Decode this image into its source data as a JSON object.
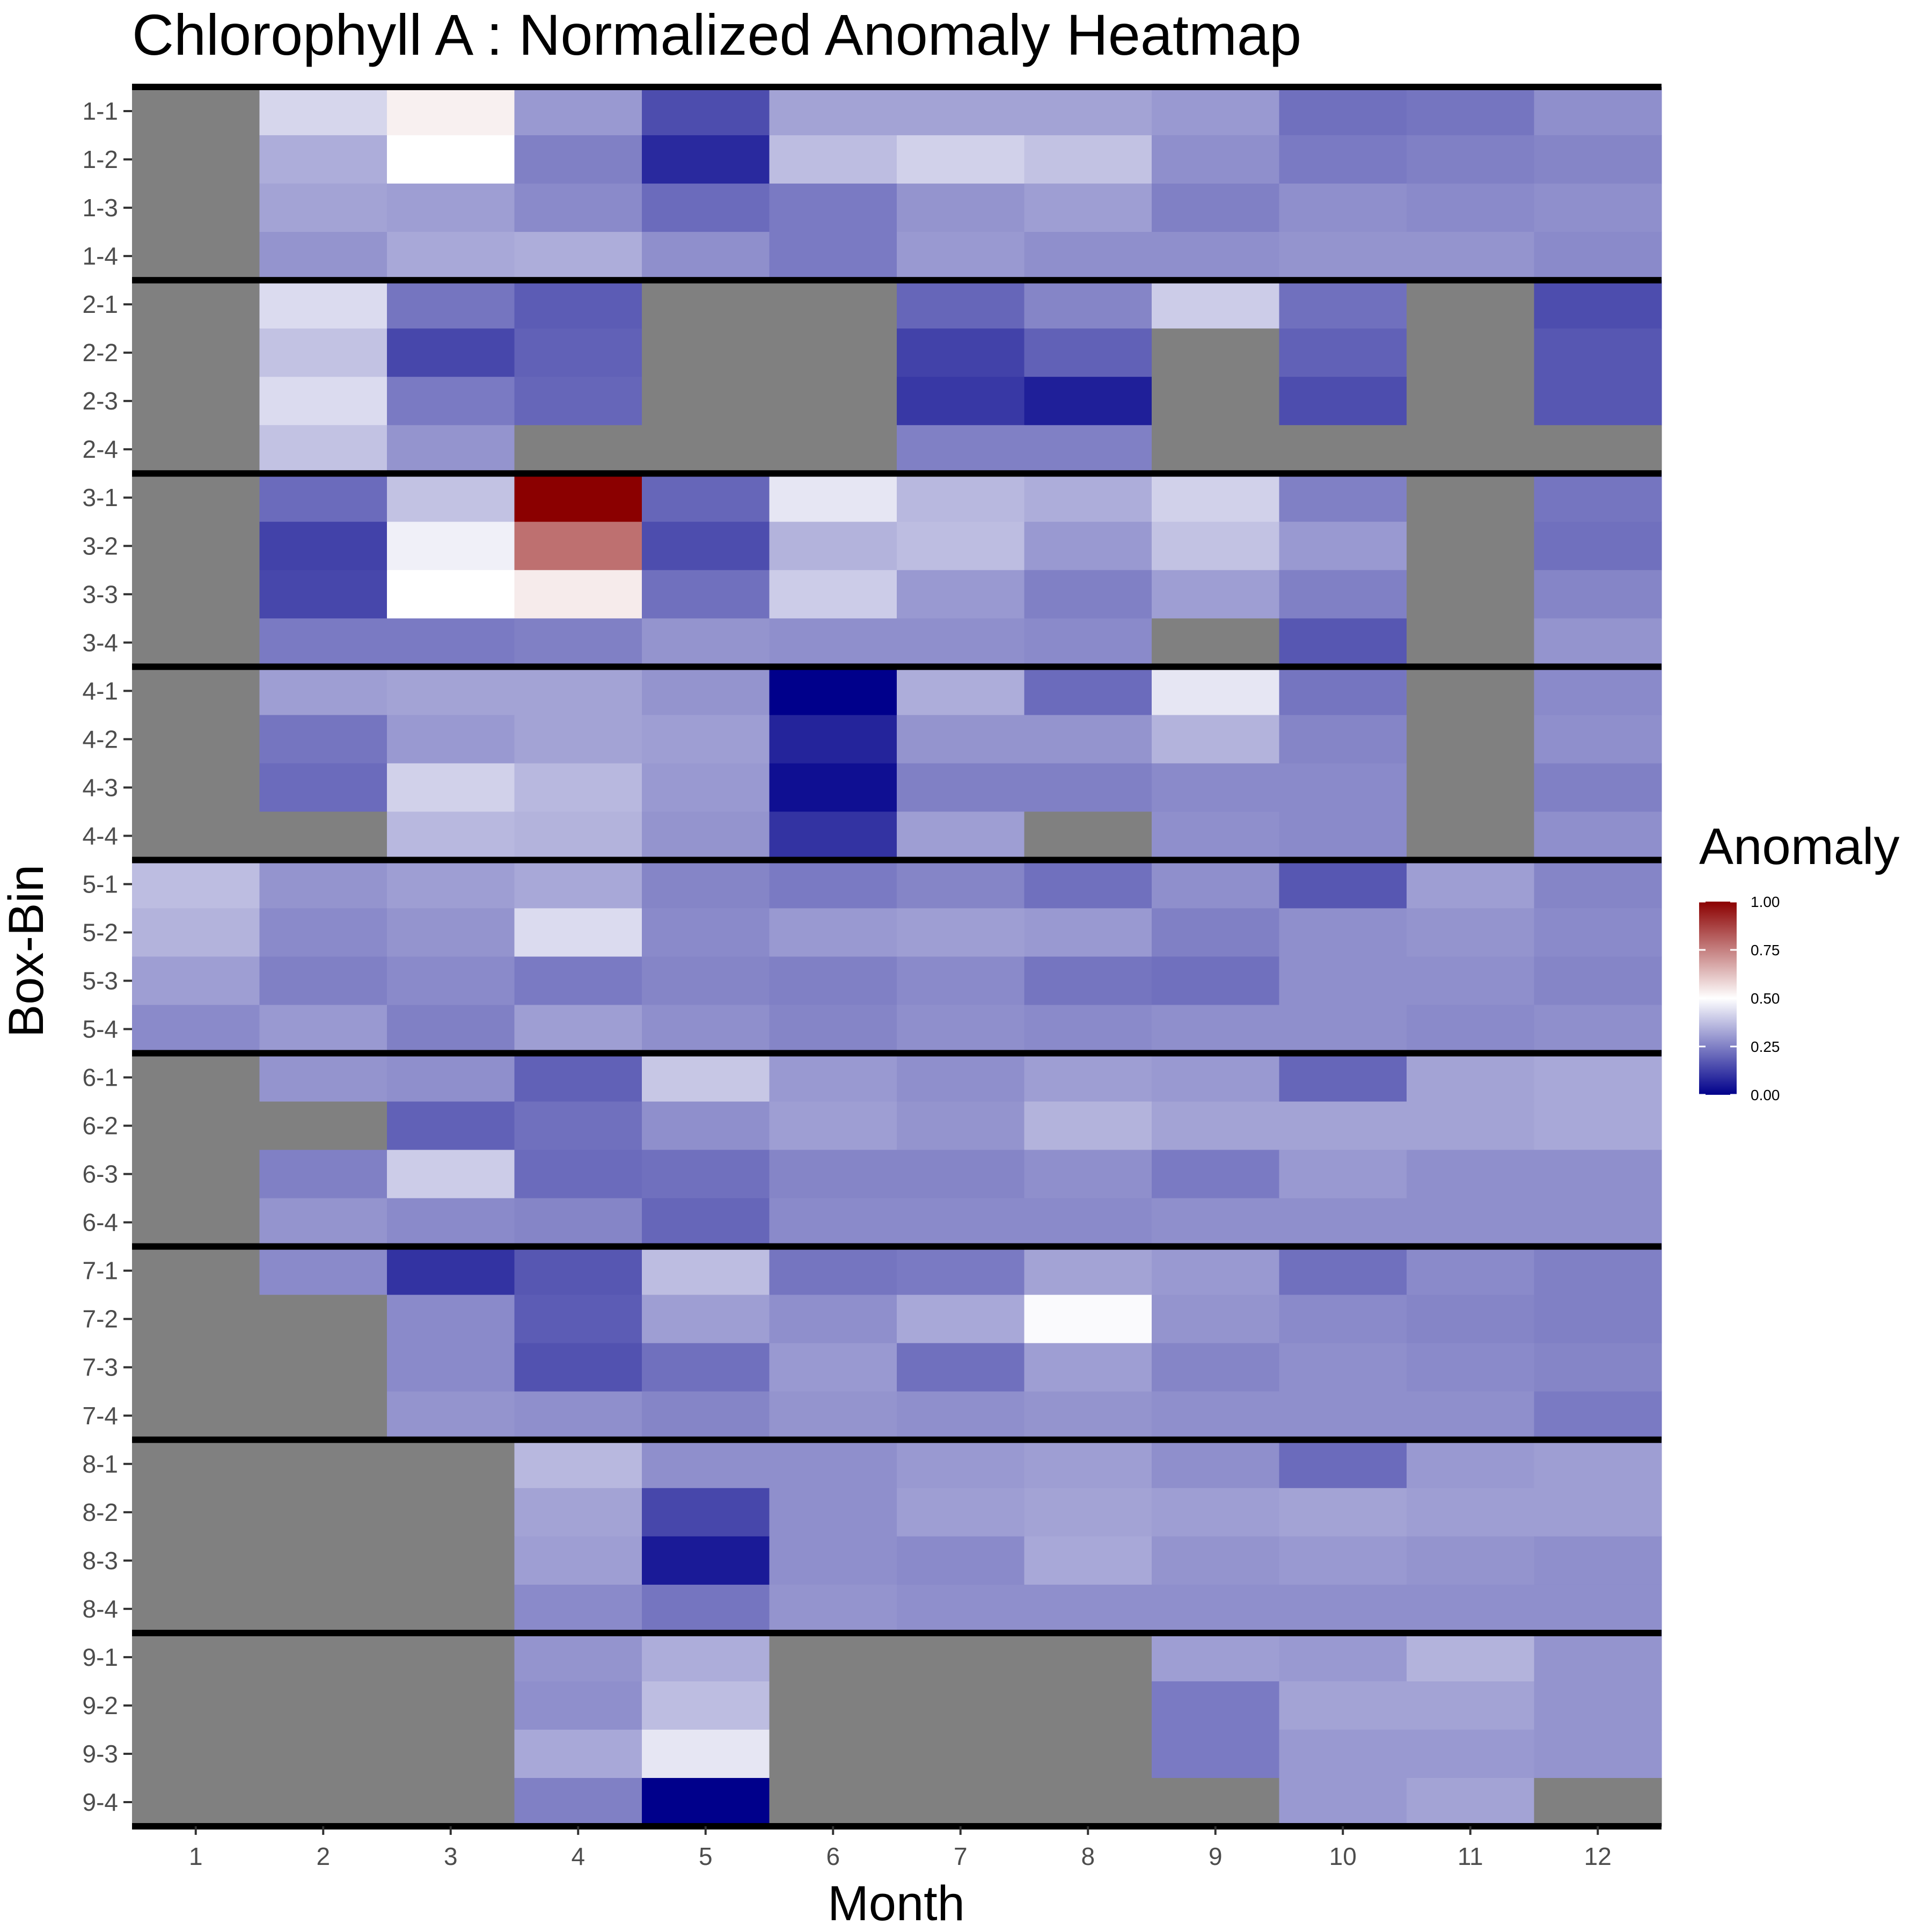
{
  "chart_data": {
    "type": "heatmap",
    "title": "Chlorophyll A : Normalized Anomaly Heatmap",
    "xlabel": "Month",
    "ylabel": "Box-Bin",
    "x_categories": [
      "1",
      "2",
      "3",
      "4",
      "5",
      "6",
      "7",
      "8",
      "9",
      "10",
      "11",
      "12"
    ],
    "y_categories": [
      "1-1",
      "1-2",
      "1-3",
      "1-4",
      "2-1",
      "2-2",
      "2-3",
      "2-4",
      "3-1",
      "3-2",
      "3-3",
      "3-4",
      "4-1",
      "4-2",
      "4-3",
      "4-4",
      "5-1",
      "5-2",
      "5-3",
      "5-4",
      "6-1",
      "6-2",
      "6-3",
      "6-4",
      "7-1",
      "7-2",
      "7-3",
      "7-4",
      "8-1",
      "8-2",
      "8-3",
      "8-4",
      "9-1",
      "9-2",
      "9-3",
      "9-4"
    ],
    "values": [
      [
        null,
        0.42,
        0.53,
        0.3,
        0.15,
        0.32,
        0.32,
        0.32,
        0.3,
        0.22,
        0.23,
        0.28
      ],
      [
        null,
        0.34,
        0.5,
        0.25,
        0.08,
        0.37,
        0.41,
        0.38,
        0.28,
        0.24,
        0.25,
        0.26
      ],
      [
        null,
        0.32,
        0.31,
        0.27,
        0.21,
        0.24,
        0.29,
        0.31,
        0.25,
        0.28,
        0.27,
        0.28
      ],
      [
        null,
        0.29,
        0.33,
        0.34,
        0.28,
        0.24,
        0.3,
        0.28,
        0.28,
        0.29,
        0.29,
        0.27
      ],
      [
        null,
        0.43,
        0.23,
        0.18,
        null,
        null,
        0.2,
        0.26,
        0.4,
        0.22,
        null,
        0.15
      ],
      [
        null,
        0.38,
        0.14,
        0.19,
        null,
        null,
        0.13,
        0.19,
        null,
        0.19,
        null,
        0.17
      ],
      [
        null,
        0.43,
        0.24,
        0.2,
        null,
        null,
        0.11,
        0.06,
        null,
        0.15,
        null,
        0.17
      ],
      [
        null,
        0.38,
        0.29,
        null,
        null,
        null,
        0.25,
        0.25,
        null,
        null,
        null,
        null
      ],
      [
        null,
        0.21,
        0.38,
        1.0,
        0.2,
        0.45,
        0.36,
        0.34,
        0.41,
        0.25,
        null,
        0.23
      ],
      [
        null,
        0.13,
        0.47,
        0.78,
        0.15,
        0.35,
        0.37,
        0.3,
        0.38,
        0.3,
        null,
        0.22
      ],
      [
        null,
        0.14,
        0.5,
        0.54,
        0.22,
        0.4,
        0.3,
        0.25,
        0.31,
        0.25,
        null,
        0.26
      ],
      [
        null,
        0.24,
        0.24,
        0.25,
        0.29,
        0.28,
        0.28,
        0.27,
        null,
        0.17,
        null,
        0.29
      ],
      [
        null,
        0.31,
        0.32,
        0.32,
        0.29,
        0.0,
        0.34,
        0.21,
        0.45,
        0.23,
        null,
        0.27
      ],
      [
        null,
        0.23,
        0.3,
        0.32,
        0.31,
        0.07,
        0.29,
        0.29,
        0.35,
        0.26,
        null,
        0.28
      ],
      [
        null,
        0.21,
        0.41,
        0.36,
        0.3,
        0.03,
        0.25,
        0.25,
        0.27,
        0.27,
        null,
        0.25
      ],
      [
        null,
        null,
        0.36,
        0.35,
        0.29,
        0.1,
        0.31,
        null,
        0.28,
        0.27,
        null,
        0.28
      ],
      [
        0.37,
        0.29,
        0.31,
        0.33,
        0.26,
        0.24,
        0.26,
        0.22,
        0.28,
        0.17,
        0.31,
        0.26
      ],
      [
        0.35,
        0.27,
        0.29,
        0.43,
        0.27,
        0.3,
        0.31,
        0.3,
        0.25,
        0.28,
        0.29,
        0.27
      ],
      [
        0.31,
        0.25,
        0.27,
        0.24,
        0.26,
        0.25,
        0.27,
        0.23,
        0.22,
        0.28,
        0.28,
        0.26
      ],
      [
        0.27,
        0.3,
        0.25,
        0.31,
        0.28,
        0.26,
        0.28,
        0.27,
        0.28,
        0.28,
        0.27,
        0.28
      ],
      [
        null,
        0.29,
        0.28,
        0.19,
        0.39,
        0.3,
        0.28,
        0.31,
        0.3,
        0.2,
        0.32,
        0.33
      ],
      [
        null,
        null,
        0.19,
        0.22,
        0.28,
        0.31,
        0.29,
        0.35,
        0.32,
        0.32,
        0.32,
        0.33
      ],
      [
        null,
        0.25,
        0.4,
        0.21,
        0.22,
        0.26,
        0.26,
        0.28,
        0.24,
        0.3,
        0.28,
        0.28
      ],
      [
        null,
        0.29,
        0.27,
        0.26,
        0.2,
        0.27,
        0.27,
        0.27,
        0.28,
        0.28,
        0.28,
        0.28
      ],
      [
        null,
        0.27,
        0.1,
        0.17,
        0.37,
        0.23,
        0.24,
        0.32,
        0.3,
        0.22,
        0.27,
        0.25
      ],
      [
        null,
        null,
        0.27,
        0.18,
        0.31,
        0.28,
        0.33,
        0.49,
        0.29,
        0.27,
        0.26,
        0.25
      ],
      [
        null,
        null,
        0.27,
        0.16,
        0.22,
        0.3,
        0.22,
        0.31,
        0.26,
        0.28,
        0.27,
        0.26
      ],
      [
        null,
        null,
        0.29,
        0.28,
        0.26,
        0.29,
        0.28,
        0.29,
        0.28,
        0.28,
        0.28,
        0.24
      ],
      [
        null,
        null,
        null,
        0.36,
        0.28,
        0.28,
        0.3,
        0.31,
        0.28,
        0.21,
        0.3,
        0.31
      ],
      [
        null,
        null,
        null,
        0.32,
        0.14,
        0.28,
        0.31,
        0.32,
        0.31,
        0.32,
        0.31,
        0.31
      ],
      [
        null,
        null,
        null,
        0.31,
        0.05,
        0.28,
        0.27,
        0.33,
        0.29,
        0.3,
        0.29,
        0.28
      ],
      [
        null,
        null,
        null,
        0.27,
        0.23,
        0.29,
        0.28,
        0.28,
        0.28,
        0.28,
        0.28,
        0.28
      ],
      [
        null,
        null,
        null,
        0.29,
        0.34,
        null,
        null,
        null,
        0.31,
        0.3,
        0.35,
        0.29
      ],
      [
        null,
        null,
        null,
        0.28,
        0.37,
        null,
        null,
        null,
        0.24,
        0.32,
        0.32,
        0.29
      ],
      [
        null,
        null,
        null,
        0.33,
        0.45,
        null,
        null,
        null,
        0.24,
        0.3,
        0.3,
        0.29
      ],
      [
        null,
        null,
        null,
        0.25,
        0.0,
        null,
        null,
        null,
        null,
        0.3,
        0.32,
        null
      ]
    ],
    "value_range": [
      0,
      1
    ],
    "missing_color": "#808080",
    "color_scale": {
      "low": "#00008b",
      "mid": "#ffffff",
      "high": "#8b0000",
      "midpoint": 0.5
    },
    "group_separator_color": "#000000",
    "legend": {
      "title": "Anomaly",
      "placement": "right",
      "ticks": [
        "1.00",
        "0.75",
        "0.50",
        "0.25",
        "0.00"
      ],
      "tick_values": [
        1,
        0.75,
        0.5,
        0.25,
        0
      ]
    },
    "grid": false
  }
}
